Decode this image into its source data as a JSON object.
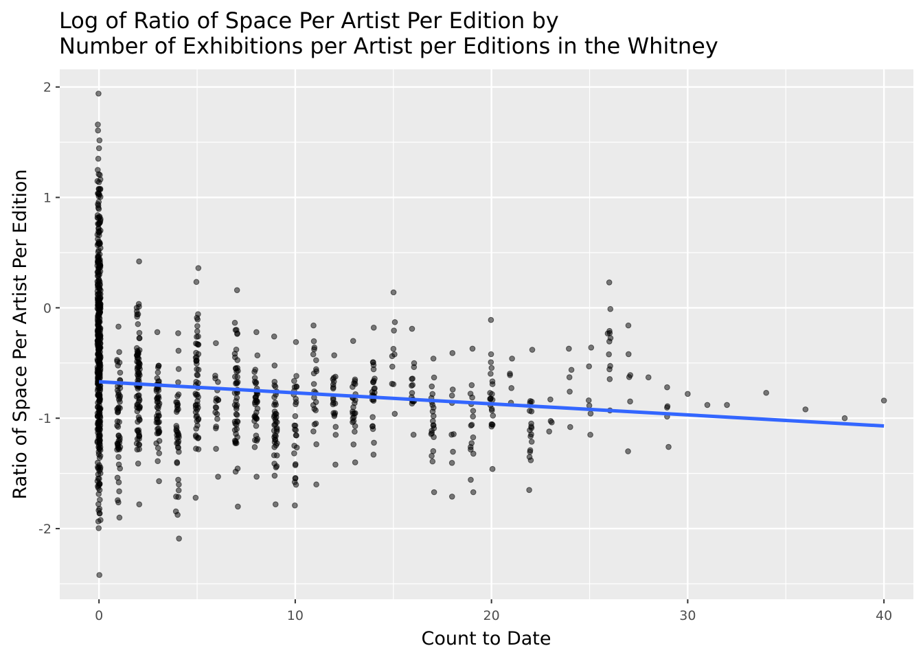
{
  "chart_data": {
    "type": "scatter",
    "title_lines": [
      "Log of Ratio of Space Per Artist Per Edition by",
      "Number of Exhibitions per Artist per Editions in the Whitney"
    ],
    "xlabel": "Count to Date",
    "ylabel": "Ratio of Space Per Artist Per Edition",
    "xlim": [
      -2,
      41.5
    ],
    "ylim": [
      -2.64,
      2.16
    ],
    "x_ticks": [
      0,
      10,
      20,
      30,
      40
    ],
    "y_ticks": [
      2,
      1,
      0,
      -1,
      -2
    ],
    "x_tick_labels": [
      "0",
      "10",
      "20",
      "30",
      "40"
    ],
    "y_tick_labels": [
      "2",
      "1",
      "0",
      "-1",
      "-2"
    ],
    "x_minor_ticks": [
      5,
      15,
      25,
      35
    ],
    "y_minor_ticks": [
      1.5,
      0.5,
      -0.5,
      -1.5,
      -2.5
    ],
    "grid": true,
    "legend": "none",
    "colors": {
      "panel_background": "#ebebeb",
      "grid": "#ffffff",
      "points": "#000000",
      "trend_line": "#3366ff"
    },
    "point_opacity": 0.5,
    "point_clusters": [
      {
        "x": 0,
        "ymin": -2.42,
        "ymax": 1.94,
        "n": 420
      },
      {
        "x": 1,
        "ymin": -1.9,
        "ymax": -0.17,
        "n": 55
      },
      {
        "x": 2,
        "ymin": -1.78,
        "ymax": 0.42,
        "n": 85
      },
      {
        "x": 3,
        "ymin": -1.57,
        "ymax": -0.22,
        "n": 50
      },
      {
        "x": 4,
        "ymin": -2.09,
        "ymax": -0.23,
        "n": 40
      },
      {
        "x": 5,
        "ymin": -1.72,
        "ymax": 0.36,
        "n": 55
      },
      {
        "x": 6,
        "ymin": -1.53,
        "ymax": -0.32,
        "n": 18
      },
      {
        "x": 7,
        "ymin": -1.8,
        "ymax": 0.16,
        "n": 50
      },
      {
        "x": 8,
        "ymin": -1.53,
        "ymax": -0.22,
        "n": 38
      },
      {
        "x": 9,
        "ymin": -1.78,
        "ymax": -0.26,
        "n": 42
      },
      {
        "x": 10,
        "ymin": -1.79,
        "ymax": -0.31,
        "n": 28
      },
      {
        "x": 11,
        "ymin": -1.6,
        "ymax": -0.16,
        "n": 22
      },
      {
        "x": 12,
        "ymin": -1.42,
        "ymax": -0.43,
        "n": 20
      },
      {
        "x": 13,
        "ymin": -1.4,
        "ymax": -0.3,
        "n": 24
      },
      {
        "x": 14,
        "ymin": -1.33,
        "ymax": -0.18,
        "n": 25
      },
      {
        "x": 15,
        "ymin": -0.96,
        "ymax": 0.14,
        "n": 10
      },
      {
        "x": 16,
        "ymin": -1.15,
        "ymax": -0.19,
        "n": 16
      },
      {
        "x": 17,
        "ymin": -1.67,
        "ymax": -0.46,
        "n": 22
      },
      {
        "x": 18,
        "ymin": -1.71,
        "ymax": -0.41,
        "n": 9
      },
      {
        "x": 19,
        "ymin": -1.67,
        "ymax": -0.37,
        "n": 16
      },
      {
        "x": 20,
        "ymin": -1.46,
        "ymax": -0.11,
        "n": 22
      },
      {
        "x": 21,
        "ymin": -0.86,
        "ymax": -0.46,
        "n": 5
      },
      {
        "x": 22,
        "ymin": -1.65,
        "ymax": -0.38,
        "n": 18
      },
      {
        "x": 23,
        "ymin": -1.12,
        "ymax": -0.83,
        "n": 4
      },
      {
        "x": 24,
        "ymin": -1.08,
        "ymax": -0.37,
        "n": 5
      },
      {
        "x": 25,
        "ymin": -1.15,
        "ymax": -0.36,
        "n": 6
      },
      {
        "x": 26,
        "ymin": -0.93,
        "ymax": 0.23,
        "n": 12
      },
      {
        "x": 27,
        "ymin": -1.3,
        "ymax": -0.16,
        "n": 6
      },
      {
        "x": 28,
        "ymin": -0.63,
        "ymax": -0.63,
        "n": 1
      },
      {
        "x": 29,
        "ymin": -1.26,
        "ymax": -0.72,
        "n": 5
      },
      {
        "x": 30,
        "ymin": -0.78,
        "ymax": -0.78,
        "n": 1
      },
      {
        "x": 31,
        "ymin": -0.88,
        "ymax": -0.88,
        "n": 1
      },
      {
        "x": 32,
        "ymin": -0.88,
        "ymax": -0.88,
        "n": 1
      },
      {
        "x": 34,
        "ymin": -0.77,
        "ymax": -0.77,
        "n": 1
      },
      {
        "x": 36,
        "ymin": -0.92,
        "ymax": -0.92,
        "n": 1
      },
      {
        "x": 38,
        "ymin": -1.0,
        "ymax": -1.0,
        "n": 1
      },
      {
        "x": 40,
        "ymin": -0.84,
        "ymax": -0.84,
        "n": 1
      }
    ],
    "trend_line": {
      "x": [
        0,
        40
      ],
      "y": [
        -0.67,
        -1.07
      ]
    }
  }
}
